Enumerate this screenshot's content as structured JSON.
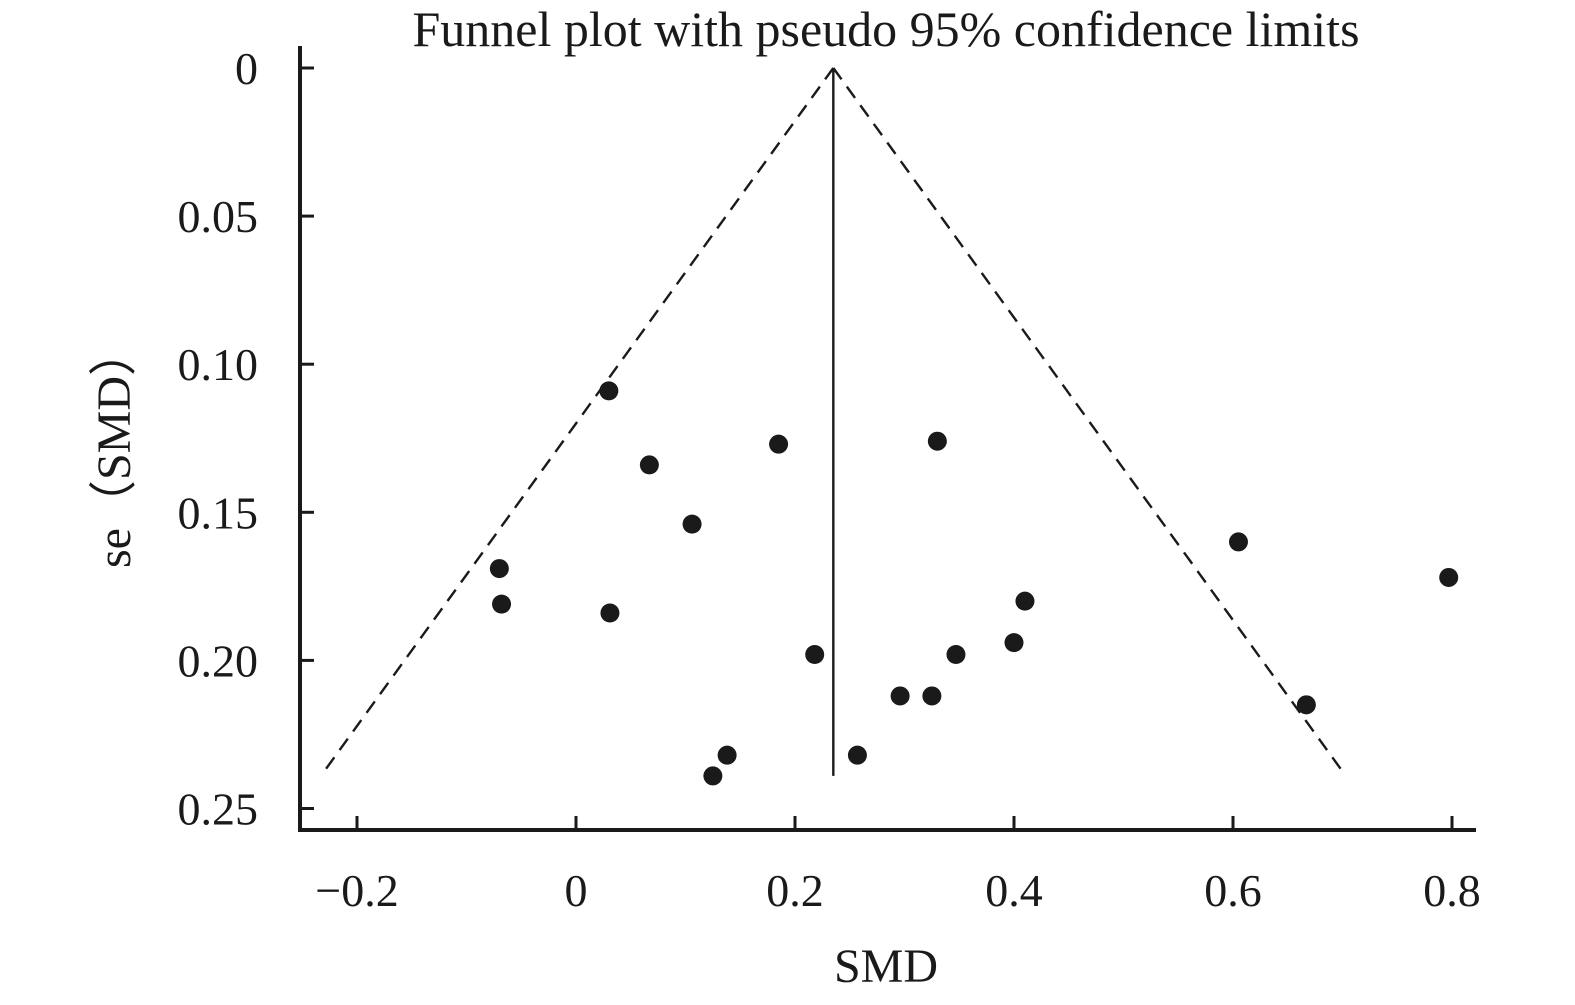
{
  "chart_data": {
    "type": "scatter",
    "title": "Funnel plot with pseudo 95% confidence limits",
    "xlabel": "SMD",
    "ylabel": "se（SMD）",
    "xlim": [
      -0.25,
      0.82
    ],
    "ylim": [
      0,
      0.257
    ],
    "y_inverted": true,
    "x_ticks": [
      -0.2,
      0,
      0.2,
      0.4,
      0.6,
      0.8
    ],
    "x_tick_labels": [
      "−0.2",
      "0",
      "0.2",
      "0.4",
      "0.6",
      "0.8"
    ],
    "y_ticks": [
      0,
      0.05,
      0.1,
      0.15,
      0.2,
      0.25
    ],
    "y_tick_labels": [
      "0",
      "0.05",
      "0.10",
      "0.15",
      "0.20",
      "0.25"
    ],
    "grid": false,
    "pooled_estimate": 0.235,
    "funnel_limits": {
      "apex": [
        0.235,
        0
      ],
      "bottom_se": 0.239,
      "left_x": -0.233,
      "right_x": 0.703
    },
    "points": [
      {
        "x": 0.03,
        "y": 0.109
      },
      {
        "x": 0.33,
        "y": 0.126
      },
      {
        "x": 0.185,
        "y": 0.127
      },
      {
        "x": 0.067,
        "y": 0.134
      },
      {
        "x": 0.106,
        "y": 0.154
      },
      {
        "x": 0.605,
        "y": 0.16
      },
      {
        "x": -0.07,
        "y": 0.169
      },
      {
        "x": 0.797,
        "y": 0.172
      },
      {
        "x": 0.41,
        "y": 0.18
      },
      {
        "x": -0.068,
        "y": 0.181
      },
      {
        "x": 0.031,
        "y": 0.184
      },
      {
        "x": 0.4,
        "y": 0.194
      },
      {
        "x": 0.347,
        "y": 0.198
      },
      {
        "x": 0.218,
        "y": 0.198
      },
      {
        "x": 0.296,
        "y": 0.212
      },
      {
        "x": 0.325,
        "y": 0.212
      },
      {
        "x": 0.667,
        "y": 0.215
      },
      {
        "x": 0.138,
        "y": 0.232
      },
      {
        "x": 0.257,
        "y": 0.232
      },
      {
        "x": 0.125,
        "y": 0.239
      }
    ],
    "colors": {
      "ink": "#1a1a1a",
      "background": "#ffffff"
    }
  }
}
